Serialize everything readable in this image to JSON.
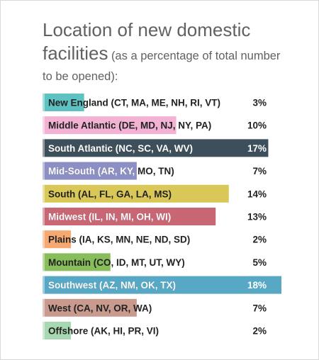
{
  "chart_data": {
    "type": "bar",
    "orientation": "horizontal",
    "title": "Location of new domestic facilities",
    "subtitle": "(as a percentage of total number to be opened):",
    "unit": "%",
    "categories": [
      "New England (CT, MA, ME, NH, RI, VT)",
      "Middle Atlantic (DE, MD, NJ, NY, PA)",
      "South Atlantic (NC, SC, VA, WV)",
      "Mid-South (AR, KY, MO, TN)",
      "South (AL, FL, GA, LA, MS)",
      "Midwest (IL, IN, MI, OH, WI)",
      "Plains (IA, KS, MN, NE, ND, SD)",
      "Mountain (CO, ID, MT, UT, WY)",
      "Southwest (AZ, NM, OK, TX)",
      "West (CA, NV, OR, WA)",
      "Offshore (AK, HI, PR, VI)"
    ],
    "values": [
      3,
      10,
      17,
      7,
      14,
      13,
      2,
      5,
      18,
      7,
      2
    ],
    "value_labels": [
      "3%",
      "10%",
      "17%",
      "7%",
      "14%",
      "13%",
      "2%",
      "5%",
      "18%",
      "7%",
      "2%"
    ],
    "colors": [
      "#5ec2c3",
      "#f3b2d4",
      "#3c4f5a",
      "#8b8fc4",
      "#d9c857",
      "#c86673",
      "#f5a870",
      "#87bd5a",
      "#56a8c4",
      "#c99a8e",
      "#a8d8b2"
    ],
    "text_colors": [
      "#222222",
      "#222222",
      "#ffffff",
      "#ffffff",
      "#222222",
      "#ffffff",
      "#222222",
      "#222222",
      "#ffffff",
      "#222222",
      "#222222"
    ],
    "xlim": [
      0,
      18
    ],
    "grid": false,
    "legend": "none"
  }
}
